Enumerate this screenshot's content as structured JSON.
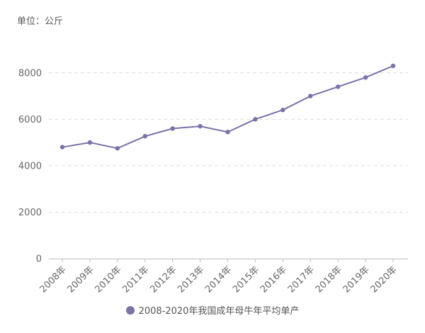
{
  "unit_label": "单位：公斤",
  "chart_data": {
    "type": "line",
    "title": "",
    "xlabel": "",
    "ylabel": "",
    "categories": [
      "2008年",
      "2009年",
      "2010年",
      "2011年",
      "2012年",
      "2013年",
      "2014年",
      "2015年",
      "2016年",
      "2017年",
      "2018年",
      "2019年",
      "2020年"
    ],
    "series": [
      {
        "name": "2008-2020年我国成年母牛年平均单产",
        "values": [
          4800,
          5000,
          4750,
          5270,
          5600,
          5700,
          5450,
          6000,
          6400,
          7000,
          7400,
          7800,
          8300
        ],
        "color": "#7b72a8"
      }
    ],
    "ylim": [
      0,
      9000
    ],
    "yticks": [
      0,
      2000,
      4000,
      6000,
      8000
    ],
    "grid": true,
    "legend_position": "bottom"
  }
}
